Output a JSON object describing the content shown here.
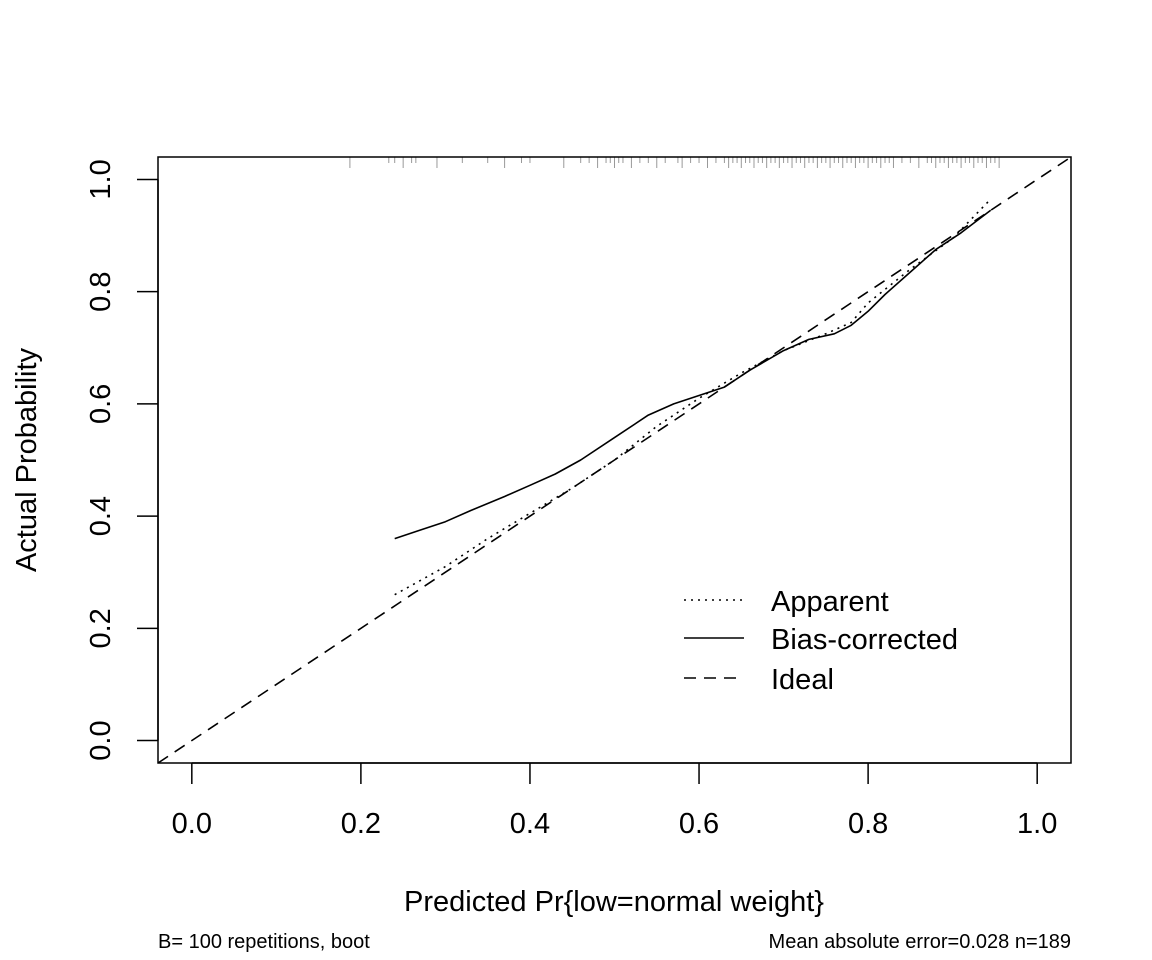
{
  "chart_data": {
    "type": "line",
    "title": "",
    "xlabel": "Predicted Pr{low=normal weight}",
    "ylabel": "Actual Probability",
    "xlim": [
      -0.04,
      1.04
    ],
    "ylim": [
      -0.04,
      1.04
    ],
    "x_ticks": [
      {
        "value": 0.0,
        "label": "0.0"
      },
      {
        "value": 0.2,
        "label": "0.2"
      },
      {
        "value": 0.4,
        "label": "0.4"
      },
      {
        "value": 0.6,
        "label": "0.6"
      },
      {
        "value": 0.8,
        "label": "0.8"
      },
      {
        "value": 1.0,
        "label": "1.0"
      }
    ],
    "y_ticks": [
      {
        "value": 0.0,
        "label": "0.0"
      },
      {
        "value": 0.2,
        "label": "0.2"
      },
      {
        "value": 0.4,
        "label": "0.4"
      },
      {
        "value": 0.6,
        "label": "0.6"
      },
      {
        "value": 0.8,
        "label": "0.8"
      },
      {
        "value": 1.0,
        "label": "1.0"
      }
    ],
    "grid": false,
    "legend_position": "bottom-right",
    "series": [
      {
        "name": "Apparent",
        "line_style": "dotted",
        "x": [
          0.24,
          0.3,
          0.35,
          0.4,
          0.45,
          0.5,
          0.55,
          0.6,
          0.65,
          0.7,
          0.75,
          0.78,
          0.8,
          0.85,
          0.9,
          0.945
        ],
        "y": [
          0.26,
          0.31,
          0.36,
          0.405,
          0.45,
          0.5,
          0.56,
          0.61,
          0.655,
          0.695,
          0.725,
          0.745,
          0.78,
          0.84,
          0.895,
          0.965
        ]
      },
      {
        "name": "Bias-corrected",
        "line_style": "solid",
        "x": [
          0.24,
          0.27,
          0.3,
          0.33,
          0.37,
          0.4,
          0.43,
          0.46,
          0.5,
          0.54,
          0.57,
          0.6,
          0.63,
          0.66,
          0.7,
          0.73,
          0.76,
          0.78,
          0.8,
          0.82,
          0.85,
          0.88,
          0.91,
          0.945
        ],
        "y": [
          0.36,
          0.375,
          0.39,
          0.41,
          0.435,
          0.455,
          0.475,
          0.5,
          0.54,
          0.58,
          0.6,
          0.615,
          0.63,
          0.66,
          0.695,
          0.715,
          0.725,
          0.74,
          0.765,
          0.795,
          0.835,
          0.875,
          0.905,
          0.945
        ]
      },
      {
        "name": "Ideal",
        "line_style": "dashed",
        "x": [
          -0.04,
          1.04
        ],
        "y": [
          -0.04,
          1.04
        ]
      }
    ],
    "rug": {
      "y": 1.04,
      "x": [
        0.187,
        0.233,
        0.24,
        0.25,
        0.26,
        0.265,
        0.29,
        0.32,
        0.35,
        0.37,
        0.39,
        0.4,
        0.44,
        0.46,
        0.47,
        0.48,
        0.49,
        0.495,
        0.5,
        0.505,
        0.51,
        0.52,
        0.53,
        0.54,
        0.55,
        0.56,
        0.575,
        0.58,
        0.59,
        0.6,
        0.61,
        0.62,
        0.63,
        0.635,
        0.64,
        0.645,
        0.65,
        0.655,
        0.66,
        0.665,
        0.67,
        0.675,
        0.68,
        0.685,
        0.69,
        0.695,
        0.7,
        0.705,
        0.71,
        0.715,
        0.72,
        0.725,
        0.73,
        0.735,
        0.74,
        0.745,
        0.75,
        0.755,
        0.76,
        0.765,
        0.77,
        0.775,
        0.78,
        0.785,
        0.79,
        0.795,
        0.8,
        0.805,
        0.81,
        0.815,
        0.82,
        0.825,
        0.83,
        0.84,
        0.85,
        0.86,
        0.87,
        0.875,
        0.88,
        0.885,
        0.89,
        0.895,
        0.9,
        0.905,
        0.91,
        0.915,
        0.92,
        0.925,
        0.93,
        0.935,
        0.94,
        0.945,
        0.95,
        0.955
      ]
    },
    "legend": [
      {
        "label": "Apparent",
        "line_style": "dotted"
      },
      {
        "label": "Bias-corrected",
        "line_style": "solid"
      },
      {
        "label": "Ideal",
        "line_style": "dashed"
      }
    ],
    "footer_left": "B= 100 repetitions, boot",
    "footer_right": "Mean absolute error=0.028 n=189"
  },
  "colors": {
    "line": "#000000",
    "rug": "#999999",
    "background": "#ffffff"
  }
}
